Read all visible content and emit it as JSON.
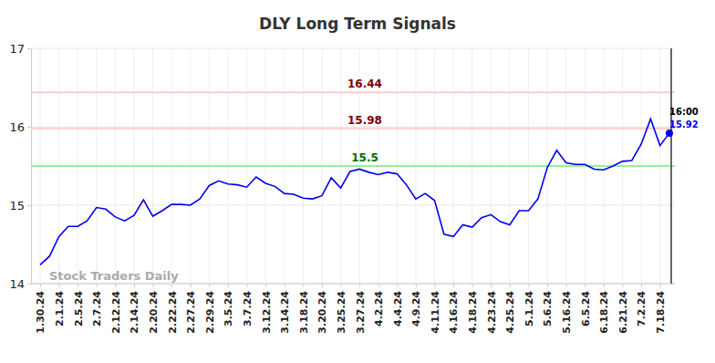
{
  "chart_data": {
    "type": "line",
    "title": "DLY Long Term Signals",
    "watermark": "Stock Traders Daily",
    "last_label": "16:00",
    "color": "#0000ee",
    "grid": true,
    "categories": [
      "1.30.24",
      null,
      "2.1.24",
      null,
      "2.5.24",
      null,
      "2.7.24",
      null,
      "2.12.24",
      null,
      "2.14.24",
      null,
      "2.20.24",
      null,
      "2.22.24",
      null,
      "2.27.24",
      null,
      "2.29.24",
      null,
      "3.5.24",
      null,
      "3.7.24",
      null,
      "3.12.24",
      null,
      "3.14.24",
      null,
      "3.18.24",
      null,
      "3.20.24",
      null,
      "3.25.24",
      null,
      "3.27.24",
      null,
      "4.2.24",
      null,
      "4.4.24",
      null,
      "4.9.24",
      null,
      "4.11.24",
      null,
      "4.16.24",
      null,
      "4.18.24",
      null,
      "4.23.24",
      null,
      "4.25.24",
      null,
      "5.1.24",
      null,
      "5.6.24",
      null,
      "5.16.24",
      null,
      "6.5.24",
      null,
      "6.18.24",
      null,
      "6.21.24",
      null,
      "7.2.24",
      null,
      "7.18.24",
      null
    ],
    "values": [
      14.24,
      14.35,
      14.6,
      14.73,
      14.73,
      14.8,
      14.97,
      14.95,
      14.85,
      14.8,
      14.87,
      15.07,
      14.86,
      14.93,
      15.01,
      15.01,
      15.0,
      15.08,
      15.25,
      15.31,
      15.27,
      15.26,
      15.23,
      15.36,
      15.28,
      15.24,
      15.15,
      15.14,
      15.09,
      15.08,
      15.12,
      15.35,
      15.22,
      15.43,
      15.46,
      15.42,
      15.39,
      15.42,
      15.4,
      15.26,
      15.08,
      15.15,
      15.06,
      14.63,
      14.6,
      14.75,
      14.72,
      14.84,
      14.88,
      14.79,
      14.75,
      14.93,
      14.93,
      15.08,
      15.48,
      15.7,
      15.54,
      15.52,
      15.52,
      15.46,
      15.45,
      15.5,
      15.56,
      15.57,
      15.78,
      16.1,
      15.76,
      15.92
    ],
    "ylim": [
      14,
      17
    ],
    "yticks": [
      14,
      15,
      16,
      17
    ],
    "reference_lines": [
      {
        "value": 16.44,
        "color": "#ffcccc",
        "label_color": "#800000"
      },
      {
        "value": 15.98,
        "color": "#ffcccc",
        "label_color": "#800000"
      },
      {
        "value": 15.5,
        "color": "#99ee99",
        "label_color": "#007000"
      }
    ]
  }
}
